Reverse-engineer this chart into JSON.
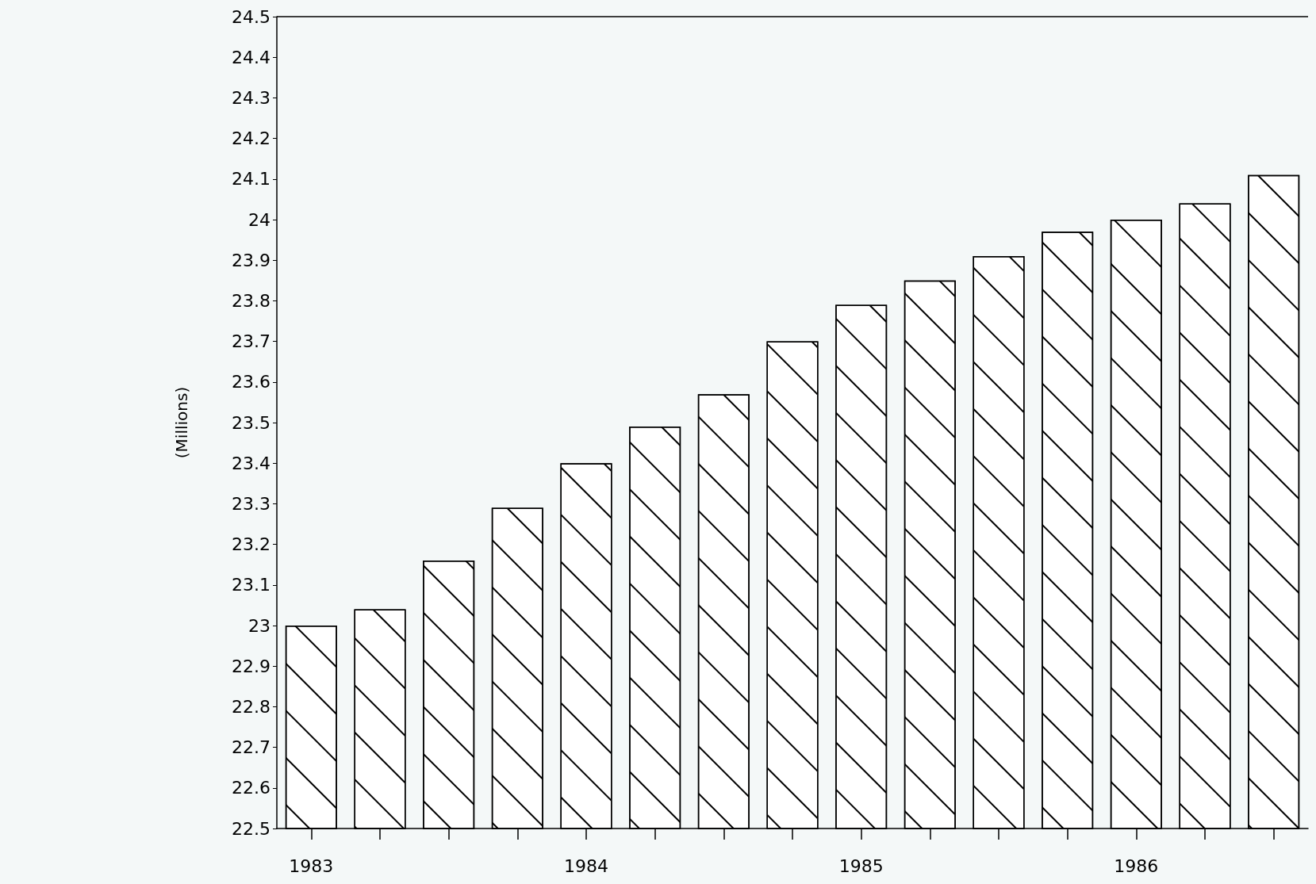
{
  "chart_data": {
    "type": "bar",
    "ylabel": "(Millions)",
    "categories": [
      "1983",
      null,
      null,
      null,
      "1984",
      null,
      null,
      null,
      "1985",
      null,
      null,
      null,
      "1986",
      null,
      null
    ],
    "values": [
      23.0,
      23.04,
      23.16,
      23.29,
      23.4,
      23.49,
      23.57,
      23.7,
      23.79,
      23.85,
      23.91,
      23.97,
      24.0,
      24.04,
      24.11
    ],
    "color": "#ffffff",
    "ylim": [
      22.5,
      24.5
    ],
    "yticks": [
      22.5,
      22.6,
      22.7,
      22.8,
      22.9,
      23,
      23.1,
      23.2,
      23.3,
      23.4,
      23.5,
      23.6,
      23.7,
      23.8,
      23.9,
      24,
      24.1,
      24.2,
      24.3,
      24.4,
      24.5
    ],
    "grid": false
  }
}
